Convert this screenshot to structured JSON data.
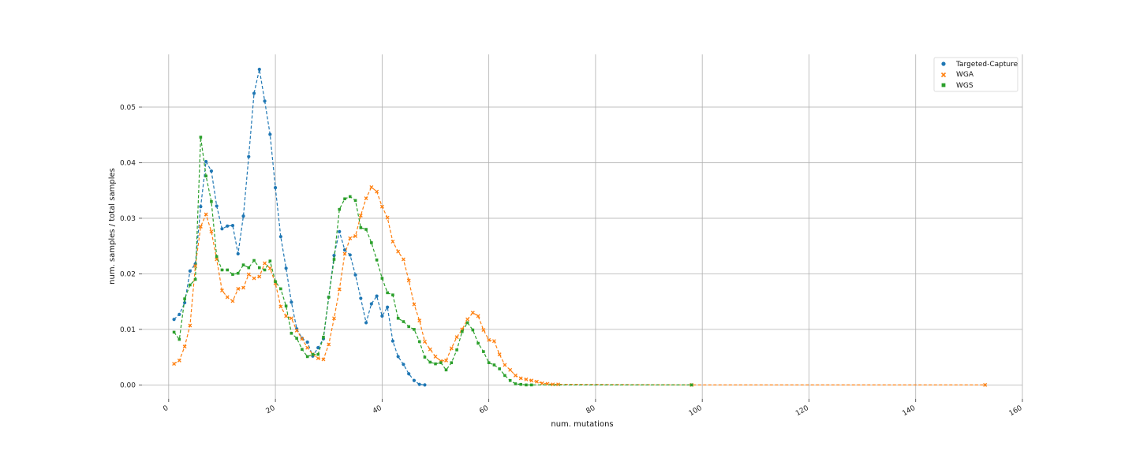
{
  "chart_data": {
    "type": "line",
    "title": "",
    "xlabel": "num. mutations",
    "ylabel": "num. samples / total samples",
    "xlim": [
      -5,
      160
    ],
    "ylim": [
      -0.0025,
      0.0595
    ],
    "xticks": [
      0,
      20,
      40,
      60,
      80,
      100,
      120,
      140,
      160
    ],
    "yticks": [
      0.0,
      0.01,
      0.02,
      0.03,
      0.04,
      0.05
    ],
    "xtick_labels": [
      "0",
      "20",
      "40",
      "60",
      "80",
      "100",
      "120",
      "140",
      "160"
    ],
    "ytick_labels": [
      "0.00",
      "0.01",
      "0.02",
      "0.03",
      "0.04",
      "0.05"
    ],
    "grid": true,
    "legend_position": "top-right",
    "series": [
      {
        "name": "Targeted-Capture",
        "color": "#1f77b4",
        "marker": "circle",
        "x": [
          1,
          2,
          3,
          4,
          5,
          6,
          7,
          8,
          9,
          10,
          11,
          12,
          13,
          14,
          15,
          16,
          17,
          18,
          19,
          20,
          21,
          22,
          23,
          24,
          25,
          26,
          27,
          28,
          29,
          30,
          31,
          32,
          33,
          34,
          35,
          36,
          37,
          38,
          39,
          40,
          41,
          42,
          43,
          44,
          45,
          46,
          47,
          48
        ],
        "y": [
          0.0118,
          0.0127,
          0.0148,
          0.0205,
          0.0218,
          0.0321,
          0.0402,
          0.0385,
          0.0322,
          0.0281,
          0.0286,
          0.0287,
          0.0236,
          0.0304,
          0.0411,
          0.0525,
          0.0568,
          0.0511,
          0.0451,
          0.0355,
          0.0267,
          0.021,
          0.0149,
          0.0101,
          0.0084,
          0.0077,
          0.0052,
          0.0067,
          0.0083,
          0.0158,
          0.0233,
          0.0276,
          0.0243,
          0.0234,
          0.0198,
          0.0156,
          0.0112,
          0.0146,
          0.016,
          0.0124,
          0.014,
          0.0079,
          0.0051,
          0.0037,
          0.002,
          0.0008,
          0.0001,
          0.0
        ]
      },
      {
        "name": "WGA",
        "color": "#ff7f0e",
        "marker": "x",
        "x": [
          1,
          2,
          3,
          4,
          5,
          6,
          7,
          8,
          9,
          10,
          11,
          12,
          13,
          14,
          15,
          16,
          17,
          18,
          19,
          20,
          21,
          22,
          23,
          24,
          25,
          26,
          27,
          28,
          29,
          30,
          31,
          32,
          33,
          34,
          35,
          36,
          37,
          38,
          39,
          40,
          41,
          42,
          43,
          44,
          45,
          46,
          47,
          48,
          49,
          50,
          51,
          52,
          53,
          54,
          55,
          56,
          57,
          58,
          59,
          60,
          61,
          62,
          63,
          64,
          65,
          66,
          67,
          68,
          69,
          70,
          71,
          72,
          73,
          98,
          153
        ],
        "y": [
          0.0038,
          0.0044,
          0.0069,
          0.0107,
          0.0214,
          0.0285,
          0.0307,
          0.0276,
          0.0226,
          0.017,
          0.0158,
          0.0151,
          0.0173,
          0.0175,
          0.0199,
          0.0192,
          0.0195,
          0.0219,
          0.021,
          0.0183,
          0.0141,
          0.0124,
          0.012,
          0.0098,
          0.0083,
          0.0067,
          0.0055,
          0.0048,
          0.0046,
          0.0073,
          0.012,
          0.0172,
          0.0236,
          0.0264,
          0.0268,
          0.0305,
          0.0336,
          0.0356,
          0.0348,
          0.0321,
          0.0301,
          0.0258,
          0.024,
          0.0226,
          0.0188,
          0.0145,
          0.0116,
          0.0078,
          0.0064,
          0.0051,
          0.0043,
          0.0044,
          0.0066,
          0.0086,
          0.01,
          0.0118,
          0.013,
          0.0124,
          0.0099,
          0.0081,
          0.0079,
          0.0055,
          0.0036,
          0.0027,
          0.0017,
          0.0012,
          0.001,
          0.0008,
          0.0006,
          0.0003,
          0.0002,
          0.0001,
          0.0001,
          0.0,
          0.0
        ]
      },
      {
        "name": "WGS",
        "color": "#2ca02c",
        "marker": "square",
        "x": [
          1,
          2,
          3,
          4,
          5,
          6,
          7,
          8,
          9,
          10,
          11,
          12,
          13,
          14,
          15,
          16,
          17,
          18,
          19,
          20,
          21,
          22,
          23,
          24,
          25,
          26,
          27,
          28,
          29,
          30,
          31,
          32,
          33,
          34,
          35,
          36,
          37,
          38,
          39,
          40,
          41,
          42,
          43,
          44,
          45,
          46,
          47,
          48,
          49,
          50,
          51,
          52,
          53,
          54,
          55,
          56,
          57,
          58,
          59,
          60,
          61,
          62,
          63,
          64,
          65,
          66,
          67,
          68,
          98
        ],
        "y": [
          0.0095,
          0.0082,
          0.0155,
          0.018,
          0.019,
          0.0446,
          0.0376,
          0.033,
          0.0231,
          0.0207,
          0.0207,
          0.0199,
          0.0201,
          0.0216,
          0.0211,
          0.0224,
          0.0211,
          0.0207,
          0.0223,
          0.0186,
          0.0173,
          0.0142,
          0.0093,
          0.0084,
          0.0064,
          0.0051,
          0.0055,
          0.0055,
          0.0086,
          0.0158,
          0.0226,
          0.0316,
          0.0335,
          0.0339,
          0.0332,
          0.0283,
          0.028,
          0.0256,
          0.0225,
          0.0192,
          0.0166,
          0.0162,
          0.012,
          0.0114,
          0.0105,
          0.01,
          0.0078,
          0.005,
          0.0041,
          0.0038,
          0.004,
          0.0027,
          0.004,
          0.0063,
          0.0096,
          0.0112,
          0.0099,
          0.0075,
          0.006,
          0.004,
          0.0036,
          0.0029,
          0.0017,
          0.0008,
          0.0002,
          0.0001,
          0.0,
          0.0,
          0.0
        ]
      }
    ]
  }
}
